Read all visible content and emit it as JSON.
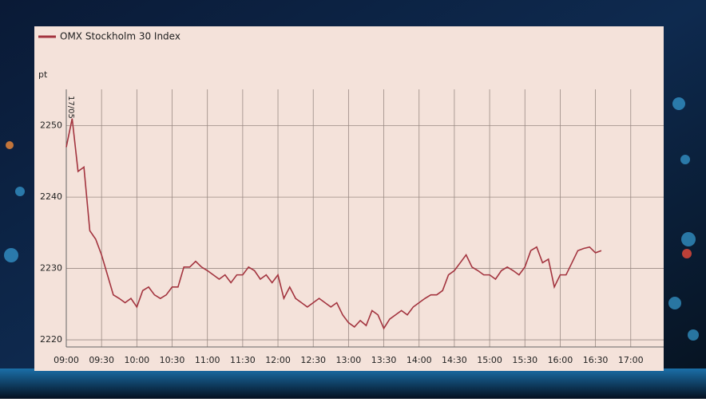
{
  "chart_data": {
    "type": "line",
    "legend": "top-left",
    "y_label": "pt",
    "annotation": "17/05",
    "grid": true,
    "x": [
      "09:00",
      "09:05",
      "09:10",
      "09:15",
      "09:20",
      "09:25",
      "09:30",
      "09:35",
      "09:40",
      "09:45",
      "09:50",
      "09:55",
      "10:00",
      "10:05",
      "10:10",
      "10:15",
      "10:20",
      "10:25",
      "10:30",
      "10:35",
      "10:40",
      "10:45",
      "10:50",
      "10:55",
      "11:00",
      "11:05",
      "11:10",
      "11:15",
      "11:20",
      "11:25",
      "11:30",
      "11:35",
      "11:40",
      "11:45",
      "11:50",
      "11:55",
      "12:00",
      "12:05",
      "12:10",
      "12:15",
      "12:20",
      "12:25",
      "12:30",
      "12:35",
      "12:40",
      "12:45",
      "12:50",
      "12:55",
      "13:00",
      "13:05",
      "13:10",
      "13:15",
      "13:20",
      "13:25",
      "13:30",
      "13:35",
      "13:40",
      "13:45",
      "13:50",
      "13:55",
      "14:00",
      "14:05",
      "14:10",
      "14:15",
      "14:20",
      "14:25",
      "14:30",
      "14:35",
      "14:40",
      "14:45",
      "14:50",
      "14:55",
      "15:00",
      "15:05",
      "15:10",
      "15:15",
      "15:20",
      "15:25",
      "15:30",
      "15:35",
      "15:40",
      "15:45",
      "15:50",
      "15:55",
      "16:00",
      "16:05",
      "16:10",
      "16:15",
      "16:20",
      "16:25",
      "16:30",
      "16:35"
    ],
    "series": [
      {
        "name": "OMX Stockholm 30 Index",
        "color": "#a3343f",
        "values": [
          2247,
          2251,
          2243.6,
          2244.2,
          2235.3,
          2234.1,
          2231.9,
          2229.1,
          2226.3,
          2225.8,
          2225.2,
          2225.8,
          2224.6,
          2226.9,
          2227.4,
          2226.3,
          2225.8,
          2226.3,
          2227.4,
          2227.4,
          2230.2,
          2230.2,
          2231,
          2230.2,
          2229.7,
          2229.1,
          2228.5,
          2229.1,
          2228,
          2229.1,
          2229.1,
          2230.2,
          2229.7,
          2228.5,
          2229.1,
          2228,
          2229.1,
          2225.8,
          2227.4,
          2225.8,
          2225.2,
          2224.6,
          2225.2,
          2225.8,
          2225.2,
          2224.6,
          2225.2,
          2223.5,
          2222.4,
          2221.8,
          2222.7,
          2222,
          2224.1,
          2223.5,
          2221.6,
          2222.9,
          2223.5,
          2224.1,
          2223.5,
          2224.6,
          2225.2,
          2225.8,
          2226.3,
          2226.3,
          2226.9,
          2229.1,
          2229.7,
          2230.8,
          2231.9,
          2230.2,
          2229.7,
          2229.1,
          2229.1,
          2228.5,
          2229.7,
          2230.2,
          2229.7,
          2229.1,
          2230.2,
          2232.5,
          2233,
          2230.8,
          2231.3,
          2227.4,
          2229.1,
          2229.1,
          2230.8,
          2232.5,
          2232.8,
          2233,
          2232.2,
          2232.5
        ]
      }
    ],
    "xlim": [
      "09:00",
      "17:28"
    ],
    "xticks": [
      "09:00",
      "09:30",
      "10:00",
      "10:30",
      "11:00",
      "11:30",
      "12:00",
      "12:30",
      "13:00",
      "13:30",
      "14:00",
      "14:30",
      "15:00",
      "15:30",
      "16:00",
      "16:30",
      "17:00"
    ],
    "ylim": [
      2219,
      2255.1
    ],
    "yticks": [
      2220,
      2230,
      2240,
      2250
    ]
  }
}
